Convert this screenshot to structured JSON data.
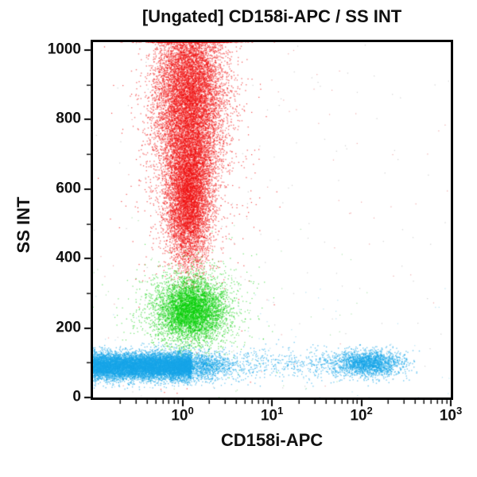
{
  "chart": {
    "title": "[Ungated] CD158i-APC / SS INT",
    "xlabel": "CD158i-APC",
    "ylabel": "SS INT"
  },
  "chart_data": {
    "type": "scatter",
    "title": "[Ungated] CD158i-APC / SS INT",
    "xlabel": "CD158i-APC",
    "ylabel": "SS INT",
    "grid": false,
    "legend": false,
    "x_scale": "log",
    "x_domain": [
      0.1,
      1000
    ],
    "x_tick_base": "10",
    "x_major_tick_exponents": [
      0,
      1,
      2,
      3
    ],
    "y_scale": "linear",
    "y_domain": [
      0,
      1023
    ],
    "y_major_ticks": [
      0,
      200,
      400,
      600,
      800,
      1000
    ],
    "y_minor_tick_step": 100,
    "colors": {
      "red": "#ee1010",
      "green": "#0ad00a",
      "blue": "#18a5e8"
    },
    "populations": [
      {
        "name": "noise-gray",
        "color": "#b0b0b0",
        "count": 130,
        "alpha": 0.6,
        "size": 1.2,
        "x": {
          "dist": "uniform",
          "min": -1,
          "max": 3
        },
        "y": {
          "dist": "uniform",
          "min": 0,
          "max": 1023
        }
      },
      {
        "name": "noise-red",
        "color": "#e06060",
        "count": 70,
        "alpha": 0.55,
        "size": 1.2,
        "x": {
          "dist": "uniform",
          "min": -1,
          "max": 3
        },
        "y": {
          "dist": "uniform",
          "min": 0,
          "max": 1023
        }
      },
      {
        "name": "noise-green",
        "color": "#6fce6f",
        "count": 45,
        "alpha": 0.55,
        "size": 1.2,
        "x": {
          "dist": "uniform",
          "min": -1,
          "max": 2.2
        },
        "y": {
          "dist": "uniform",
          "min": 0,
          "max": 520
        }
      },
      {
        "name": "noise-cyan",
        "color": "#74c9e8",
        "count": 50,
        "alpha": 0.55,
        "size": 1.2,
        "x": {
          "dist": "uniform",
          "min": -1,
          "max": 3
        },
        "y": {
          "dist": "uniform",
          "min": 0,
          "max": 320
        }
      },
      {
        "name": "red-high-ss-halo",
        "color": "#ee1010",
        "count": 750,
        "alpha": 0.75,
        "size": 1.2,
        "x": {
          "dist": "gauss",
          "mean": 0.08,
          "sigma": 0.35,
          "clamp_min": -1,
          "clamp_max": 3
        },
        "y": {
          "dist": "gauss",
          "mean": 750,
          "sigma": 235,
          "clamp_min": 0,
          "clamp_max": 1023
        }
      },
      {
        "name": "red-high-ss-upper-core",
        "color": "#ee1010",
        "count": 11000,
        "alpha": 0.55,
        "size": 1.4,
        "x": {
          "dist": "gauss",
          "mean": 0.08,
          "sigma": 0.19,
          "clamp_min": -1,
          "clamp_max": 3
        },
        "y": {
          "dist": "gauss",
          "mean": 860,
          "sigma": 150,
          "clamp_min": 0,
          "clamp_max": 1023
        }
      },
      {
        "name": "red-high-ss-lower-core",
        "color": "#ee1010",
        "count": 5500,
        "alpha": 0.55,
        "size": 1.4,
        "x": {
          "dist": "gauss",
          "mean": 0.07,
          "sigma": 0.12,
          "clamp_min": -1,
          "clamp_max": 3
        },
        "y": {
          "dist": "gauss",
          "mean": 570,
          "sigma": 95,
          "clamp_min": 0,
          "clamp_max": 1023
        }
      },
      {
        "name": "green-mid-ss-halo",
        "color": "#0ad00a",
        "count": 900,
        "alpha": 0.6,
        "size": 1.2,
        "x": {
          "dist": "gauss",
          "mean": 0.1,
          "sigma": 0.32,
          "clamp_min": -1,
          "clamp_max": 3
        },
        "y": {
          "dist": "gauss",
          "mean": 252,
          "sigma": 70,
          "clamp_min": 0,
          "clamp_max": 1023
        }
      },
      {
        "name": "green-mid-ss-core",
        "color": "#0ad00a",
        "count": 4400,
        "alpha": 0.55,
        "size": 1.4,
        "x": {
          "dist": "gauss",
          "mean": 0.1,
          "sigma": 0.19,
          "clamp_min": -1,
          "clamp_max": 3
        },
        "y": {
          "dist": "gauss",
          "mean": 252,
          "sigma": 45,
          "clamp_min": 0,
          "clamp_max": 1023
        }
      },
      {
        "name": "blue-low-ss-bridge",
        "color": "#18a5e8",
        "count": 600,
        "alpha": 0.65,
        "size": 1.3,
        "x": {
          "dist": "uniform",
          "min": 0.2,
          "max": 1.8
        },
        "y": {
          "dist": "gauss",
          "mean": 96,
          "sigma": 23,
          "clamp_min": 0,
          "clamp_max": 1023
        }
      },
      {
        "name": "blue-low-ss-band-edge",
        "color": "#18a5e8",
        "count": 1800,
        "alpha": 0.6,
        "size": 1.3,
        "x": {
          "dist": "gauss",
          "mean": 0.12,
          "sigma": 0.22,
          "clamp_min": -1,
          "clamp_max": 3
        },
        "y": {
          "dist": "gauss",
          "mean": 90,
          "sigma": 20,
          "clamp_min": 0,
          "clamp_max": 1023
        }
      },
      {
        "name": "blue-low-ss-band",
        "color": "#18a5e8",
        "count": 9800,
        "alpha": 0.6,
        "size": 1.4,
        "x": {
          "dist": "uniform",
          "min": -1,
          "max": 0.1
        },
        "y": {
          "dist": "gauss",
          "mean": 90,
          "sigma": 19,
          "clamp_min": 0,
          "clamp_max": 1023
        }
      },
      {
        "name": "blue-cd158i-positive-cluster",
        "color": "#18a5e8",
        "count": 2000,
        "alpha": 0.6,
        "size": 1.4,
        "x": {
          "dist": "gauss",
          "mean": 2.08,
          "sigma": 0.2,
          "clamp_min": -1,
          "clamp_max": 3
        },
        "y": {
          "dist": "gauss",
          "mean": 98,
          "sigma": 19,
          "clamp_min": 0,
          "clamp_max": 1023
        }
      }
    ]
  }
}
